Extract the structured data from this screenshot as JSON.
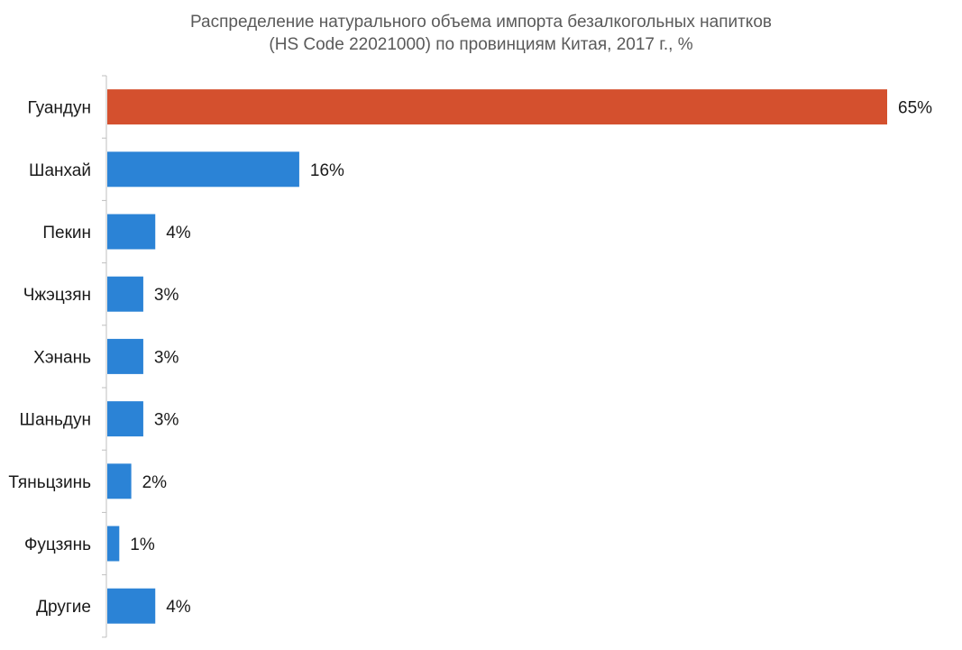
{
  "chart_data": {
    "type": "bar",
    "orientation": "horizontal",
    "title_lines": [
      "Распределение натурального объема импорта безалкогольных напитков",
      "(HS Code 22021000) по провинциям Китая, 2017 г., %"
    ],
    "categories": [
      "Гуандун",
      "Шанхай",
      "Пекин",
      "Чжэцзян",
      "Хэнань",
      "Шаньдун",
      "Тяньцзинь",
      "Фуцзянь",
      "Другие"
    ],
    "values": [
      65,
      16,
      4,
      3,
      3,
      3,
      2,
      1,
      4
    ],
    "value_labels": [
      "65%",
      "16%",
      "4%",
      "3%",
      "3%",
      "3%",
      "2%",
      "1%",
      "4%"
    ],
    "xlim": [
      0,
      65
    ],
    "xlabel": "",
    "ylabel": "",
    "grid": false,
    "legend": "none",
    "colors": {
      "highlight": "#d4502e",
      "default": "#2b83d6",
      "axis": "#bfbfbf"
    },
    "highlight_index": 0
  }
}
